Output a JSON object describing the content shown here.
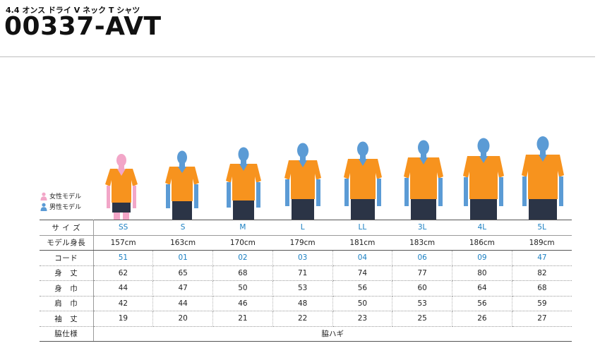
{
  "header": {
    "subtitle": "4.4 オンス ドライ V ネック T シャツ",
    "title": "00337-AVT"
  },
  "legend": {
    "female_label": "女性モデル",
    "male_label": "男性モデル"
  },
  "colors": {
    "shirt": "#f7931e",
    "female_model": "#f2a6c8",
    "male_model": "#5b9bd5",
    "pants": "#2b3446",
    "code_text": "#1a7fc2"
  },
  "spec_table": {
    "sizes": [
      "SS",
      "S",
      "M",
      "L",
      "LL",
      "3L",
      "4L",
      "5L"
    ],
    "rows": [
      {
        "label": "サ イ ズ",
        "key": "size"
      },
      {
        "label": "モデル身長",
        "values": [
          "157cm",
          "163cm",
          "170cm",
          "179cm",
          "181cm",
          "183cm",
          "186cm",
          "189cm"
        ]
      },
      {
        "label": "コード",
        "values": [
          "51",
          "01",
          "02",
          "03",
          "04",
          "06",
          "09",
          "47"
        ]
      },
      {
        "label": "身　丈",
        "values": [
          "62",
          "65",
          "68",
          "71",
          "74",
          "77",
          "80",
          "82"
        ]
      },
      {
        "label": "身　巾",
        "values": [
          "44",
          "47",
          "50",
          "53",
          "56",
          "60",
          "64",
          "68"
        ]
      },
      {
        "label": "肩　巾",
        "values": [
          "42",
          "44",
          "46",
          "48",
          "50",
          "53",
          "56",
          "59"
        ]
      },
      {
        "label": "袖　丈",
        "values": [
          "19",
          "20",
          "21",
          "22",
          "23",
          "25",
          "26",
          "27"
        ]
      }
    ],
    "side_label": "脇仕様",
    "side_value": "脇ハギ"
  }
}
